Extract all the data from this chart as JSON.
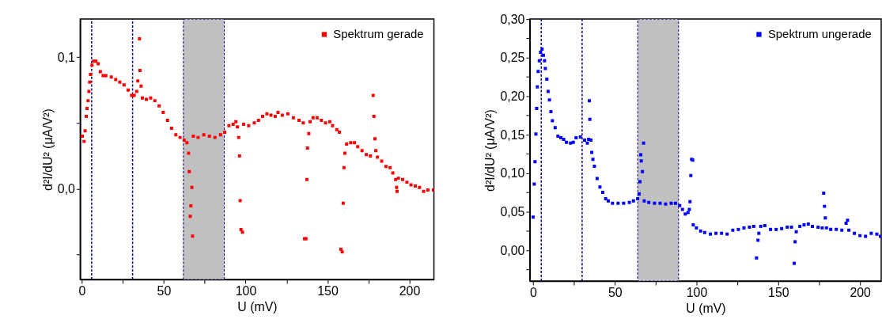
{
  "chart_data": [
    {
      "type": "scatter",
      "xlabel": "U (mV)",
      "ylabel": "d²I/dU² (μA/V²)",
      "xlim": [
        -1,
        215
      ],
      "ylim": [
        -0.069,
        0.129
      ],
      "xticks": [
        0,
        {
          "value": 25,
          "label": null
        },
        50,
        {
          "value": 75,
          "label": null
        },
        100,
        {
          "value": 125,
          "label": null
        },
        150,
        {
          "value": 175,
          "label": null
        },
        200
      ],
      "yticks": [
        {
          "value": -0.05,
          "label": null
        },
        {
          "value": 0,
          "label": "0,0"
        },
        {
          "value": 0.05,
          "label": null
        },
        {
          "value": 0.1,
          "label": "0,1"
        }
      ],
      "grid": false,
      "legend": "top right",
      "marker": "square",
      "ref_lines": [
        {
          "axis": "x",
          "value": 6,
          "color": "#00008b",
          "line_style": "dashed"
        },
        {
          "axis": "x",
          "value": 31,
          "color": "#00008b",
          "line_style": "dashed"
        }
      ],
      "bands": [
        {
          "axis": "x",
          "from": 62,
          "to": 87,
          "color": "#c0c0c0"
        }
      ],
      "series": [
        {
          "name": "Spektrum gerade",
          "color": "#ff0000",
          "x": [
            0.3,
            1.4,
            2,
            2.7,
            3.2,
            3.8,
            4.3,
            4.8,
            5.3,
            6.2,
            7.2,
            8.6,
            10,
            11.3,
            13,
            14.7,
            18,
            20.7,
            23.2,
            25.8,
            28.3,
            30.4,
            32,
            33.5,
            34.2,
            35.2,
            35.5,
            36.2,
            37,
            39.4,
            42,
            44.6,
            47.2,
            49.7,
            52.3,
            54.8,
            57.4,
            60,
            62.5,
            64.2,
            65.2,
            65.6,
            66.2,
            66.6,
            67.2,
            67.6,
            68.1,
            71,
            74.5,
            77.9,
            81.3,
            84.7,
            87.3,
            89.8,
            92.4,
            94.1,
            95,
            95.8,
            96.3,
            96.7,
            97.2,
            98.1,
            98.8,
            101.9,
            105.3,
            107.9,
            110.4,
            113,
            115.5,
            118.1,
            119.8,
            122.4,
            125.8,
            129.2,
            132.6,
            135.2,
            136,
            136.9,
            137.4,
            137.8,
            138.6,
            139.4,
            141.2,
            143.7,
            146.3,
            148.8,
            151.4,
            153.1,
            155.7,
            157.3,
            158.2,
            159,
            159.6,
            160.1,
            160.6,
            161.7,
            164.2,
            166.5,
            168.5,
            171.1,
            173.7,
            176.2,
            177.9,
            178.4,
            179,
            179.5,
            180.5,
            183.1,
            185.7,
            188.2,
            189.9,
            191.6,
            192.2,
            192.5,
            193.3,
            195.9,
            198.5,
            201,
            203.6,
            206.2,
            208.7,
            211.3,
            214.7
          ],
          "values": [
            0.04,
            0.036,
            0.044,
            0.055,
            0.061,
            0.067,
            0.074,
            0.081,
            0.087,
            0.094,
            0.097,
            0.097,
            0.095,
            0.089,
            0.086,
            0.086,
            0.085,
            0.083,
            0.081,
            0.079,
            0.075,
            0.071,
            0.071,
            0.074,
            0.082,
            0.114,
            0.09,
            0.078,
            0.069,
            0.068,
            0.069,
            0.067,
            0.063,
            0.058,
            0.052,
            0.046,
            0.041,
            0.039,
            0.037,
            0.035,
            0.027,
            0.013,
            -0.021,
            -0.013,
            0.001,
            -0.036,
            0.04,
            0.039,
            0.041,
            0.04,
            0.039,
            0.041,
            0.043,
            0.048,
            0.049,
            0.051,
            0.047,
            0.039,
            0.025,
            -0.009,
            -0.031,
            -0.033,
            0.049,
            0.048,
            0.05,
            0.052,
            0.055,
            0.057,
            0.056,
            0.055,
            0.058,
            0.056,
            0.057,
            0.054,
            0.052,
            0.05,
            -0.038,
            -0.038,
            0.007,
            0.031,
            0.042,
            0.051,
            0.054,
            0.054,
            0.052,
            0.05,
            0.051,
            0.048,
            0.045,
            0.043,
            -0.046,
            -0.048,
            -0.011,
            0.016,
            0.027,
            0.034,
            0.035,
            0.035,
            0.032,
            0.029,
            0.026,
            0.025,
            0.071,
            0.055,
            0.038,
            0.029,
            0.024,
            0.021,
            0.017,
            0.016,
            0.012,
            0.007,
            0.001,
            -0.002,
            0.008,
            0.007,
            0.005,
            0.003,
            0.002,
            0.001,
            -0.002,
            -0.001,
            -0.001
          ]
        }
      ]
    },
    {
      "type": "scatter",
      "xlabel": "U (mV)",
      "ylabel": "d²I/dU² (μA/V²)",
      "xlim": [
        -2,
        213
      ],
      "ylim": [
        -0.04,
        0.3
      ],
      "xticks": [
        0,
        {
          "value": 25,
          "label": null
        },
        50,
        {
          "value": 75,
          "label": null
        },
        100,
        {
          "value": 125,
          "label": null
        },
        150,
        {
          "value": 175,
          "label": null
        },
        200
      ],
      "yticks": [
        {
          "value": -0.025,
          "label": null
        },
        {
          "value": 0,
          "label": "0,00"
        },
        {
          "value": 0.025,
          "label": null
        },
        {
          "value": 0.05,
          "label": "0,05"
        },
        {
          "value": 0.075,
          "label": null
        },
        {
          "value": 0.1,
          "label": "0,10"
        },
        {
          "value": 0.125,
          "label": null
        },
        {
          "value": 0.15,
          "label": "0,15"
        },
        {
          "value": 0.175,
          "label": null
        },
        {
          "value": 0.2,
          "label": "0,20"
        },
        {
          "value": 0.225,
          "label": null
        },
        {
          "value": 0.25,
          "label": "0,25"
        },
        {
          "value": 0.275,
          "label": null
        },
        {
          "value": 0.3,
          "label": "0,30"
        }
      ],
      "grid": false,
      "legend": "top right",
      "marker": "square",
      "ref_lines": [
        {
          "axis": "x",
          "value": 5,
          "color": "#00008b",
          "line_style": "dashed"
        },
        {
          "axis": "x",
          "value": 30,
          "color": "#00008b",
          "line_style": "dashed"
        }
      ],
      "bands": [
        {
          "axis": "x",
          "from": 64,
          "to": 89,
          "color": "#c0c0c0"
        }
      ],
      "series": [
        {
          "name": "Spektrum ungerade",
          "color": "#0000ff",
          "x": [
            0,
            0.7,
            1.2,
            1.7,
            2.2,
            2.6,
            3.1,
            3.8,
            4.6,
            5.5,
            6.3,
            7,
            7.5,
            8.4,
            9.2,
            10,
            10.9,
            11.8,
            13.5,
            15.2,
            17,
            18.7,
            20.4,
            22.9,
            24.6,
            26.3,
            28.9,
            31.5,
            33.2,
            34,
            34.4,
            34.7,
            35.4,
            35.9,
            36.6,
            37.5,
            39.2,
            40.9,
            42.6,
            44.4,
            46,
            48.6,
            52,
            55.4,
            58.9,
            61.4,
            64,
            64.9,
            65.4,
            65.9,
            66.2,
            66.9,
            67.6,
            68,
            70.8,
            74.3,
            77.7,
            81.1,
            84.5,
            87.1,
            89.7,
            91.4,
            93.1,
            94.8,
            95.6,
            96,
            96.5,
            97,
            97.7,
            98,
            99.9,
            102.5,
            105,
            108.5,
            111.9,
            115.3,
            118.7,
            122.2,
            125.6,
            129,
            132.4,
            135,
            136.7,
            137.6,
            138.1,
            139.3,
            141.8,
            145.3,
            148.7,
            152.1,
            155.5,
            158.1,
            159.8,
            160.3,
            161,
            163.2,
            165.8,
            168.4,
            170.9,
            174.4,
            176.9,
            177.8,
            178.3,
            178.8,
            179.5,
            182.1,
            185.5,
            188.9,
            191.5,
            192.4,
            193.2,
            196.6,
            200,
            203.4,
            206.9,
            210.3,
            212.5
          ],
          "values": [
            0.043,
            0.086,
            0.115,
            0.151,
            0.184,
            0.212,
            0.232,
            0.246,
            0.257,
            0.261,
            0.253,
            0.246,
            0.236,
            0.222,
            0.206,
            0.195,
            0.18,
            0.168,
            0.159,
            0.148,
            0.146,
            0.144,
            0.14,
            0.139,
            0.14,
            0.146,
            0.147,
            0.143,
            0.139,
            0.144,
            0.194,
            0.17,
            0.143,
            0.127,
            0.118,
            0.109,
            0.093,
            0.082,
            0.075,
            0.067,
            0.064,
            0.061,
            0.061,
            0.061,
            0.062,
            0.064,
            0.067,
            0.073,
            0.089,
            0.124,
            0.116,
            0.102,
            0.139,
            0.064,
            0.062,
            0.061,
            0.061,
            0.06,
            0.061,
            0.061,
            0.058,
            0.053,
            0.047,
            0.049,
            0.053,
            0.063,
            0.097,
            0.118,
            0.117,
            0.033,
            0.029,
            0.025,
            0.023,
            0.021,
            0.022,
            0.022,
            0.021,
            0.026,
            0.027,
            0.029,
            0.03,
            0.031,
            -0.01,
            0.013,
            0.022,
            0.031,
            0.032,
            0.027,
            0.027,
            0.028,
            0.03,
            0.03,
            -0.017,
            0.011,
            0.024,
            0.031,
            0.033,
            0.034,
            0.031,
            0.03,
            0.029,
            0.074,
            0.057,
            0.042,
            0.029,
            0.027,
            0.027,
            0.026,
            0.035,
            0.039,
            0.026,
            0.022,
            0.019,
            0.018,
            0.022,
            0.021,
            0.018
          ]
        }
      ]
    }
  ]
}
